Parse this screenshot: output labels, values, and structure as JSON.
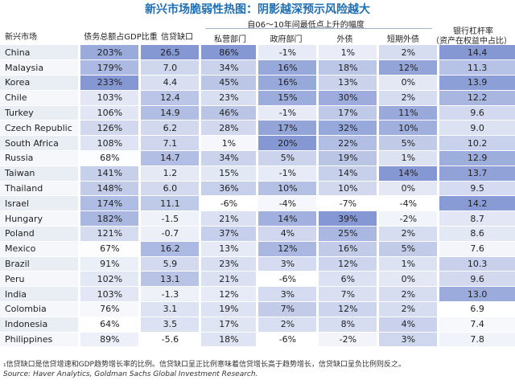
{
  "title": "新兴市场脆弱性热图：阴影越深预示风险越大",
  "headers": {
    "market": "新兴市场",
    "debt_gdp": "债务总额占GDP比重",
    "credit_gap": "信贷缺口",
    "group_label": "自06～10年间最低点上升的幅度",
    "private": "私营部门",
    "government": "政府部门",
    "external": "外债",
    "short_external": "短期外债",
    "bank_leverage_line1": "银行杠杆率",
    "bank_leverage_line2": "（资产在权益中占比）"
  },
  "rows": [
    {
      "name": "China",
      "debt": "203%",
      "gap": "26.5",
      "priv": "86%",
      "gov": "-1%",
      "ext": "1%",
      "st": "2%",
      "lev": "14.4"
    },
    {
      "name": "Malaysia",
      "debt": "179%",
      "gap": "7.0",
      "priv": "34%",
      "gov": "16%",
      "ext": "18%",
      "st": "12%",
      "lev": "11.3"
    },
    {
      "name": "Korea",
      "debt": "233%",
      "gap": "4.4",
      "priv": "45%",
      "gov": "16%",
      "ext": "13%",
      "st": "0%",
      "lev": "13.9"
    },
    {
      "name": "Chile",
      "debt": "103%",
      "gap": "12.4",
      "priv": "23%",
      "gov": "15%",
      "ext": "30%",
      "st": "2%",
      "lev": "12.2"
    },
    {
      "name": "Turkey",
      "debt": "106%",
      "gap": "14.9",
      "priv": "46%",
      "gov": "-1%",
      "ext": "17%",
      "st": "11%",
      "lev": "9.6"
    },
    {
      "name": "Czech Republic",
      "debt": "126%",
      "gap": "6.2",
      "priv": "28%",
      "gov": "17%",
      "ext": "32%",
      "st": "10%",
      "lev": "9.0"
    },
    {
      "name": "South Africa",
      "debt": "108%",
      "gap": "7.1",
      "priv": "1%",
      "gov": "20%",
      "ext": "22%",
      "st": "5%",
      "lev": "10.2"
    },
    {
      "name": "Russia",
      "debt": "68%",
      "gap": "14.7",
      "priv": "34%",
      "gov": "5%",
      "ext": "19%",
      "st": "1%",
      "lev": "12.9"
    },
    {
      "name": "Taiwan",
      "debt": "141%",
      "gap": "1.2",
      "priv": "15%",
      "gov": "-1%",
      "ext": "14%",
      "st": "14%",
      "lev": "13.7"
    },
    {
      "name": "Thailand",
      "debt": "148%",
      "gap": "6.0",
      "priv": "36%",
      "gov": "10%",
      "ext": "10%",
      "st": "0%",
      "lev": "9.5"
    },
    {
      "name": "Israel",
      "debt": "174%",
      "gap": "11.1",
      "priv": "-6%",
      "gov": "-4%",
      "ext": "-7%",
      "st": "-4%",
      "lev": "14.2"
    },
    {
      "name": "Hungary",
      "debt": "182%",
      "gap": "-1.5",
      "priv": "21%",
      "gov": "14%",
      "ext": "39%",
      "st": "-2%",
      "lev": "8.7"
    },
    {
      "name": "Poland",
      "debt": "121%",
      "gap": "-0.7",
      "priv": "37%",
      "gov": "4%",
      "ext": "25%",
      "st": "2%",
      "lev": "8.6"
    },
    {
      "name": "Mexico",
      "debt": "67%",
      "gap": "16.2",
      "priv": "13%",
      "gov": "12%",
      "ext": "16%",
      "st": "5%",
      "lev": "7.6"
    },
    {
      "name": "Brazil",
      "debt": "91%",
      "gap": "5.9",
      "priv": "23%",
      "gov": "3%",
      "ext": "12%",
      "st": "1%",
      "lev": "10.3"
    },
    {
      "name": "Peru",
      "debt": "102%",
      "gap": "13.1",
      "priv": "21%",
      "gov": "-6%",
      "ext": "6%",
      "st": "0%",
      "lev": "9.6"
    },
    {
      "name": "India",
      "debt": "103%",
      "gap": "-1.3",
      "priv": "12%",
      "gov": "3%",
      "ext": "7%",
      "st": "2%",
      "lev": "13.0"
    },
    {
      "name": "Colombia",
      "debt": "76%",
      "gap": "3.1",
      "priv": "19%",
      "gov": "7%",
      "ext": "12%",
      "st": "2%",
      "lev": "6.9"
    },
    {
      "name": "Indonesia",
      "debt": "64%",
      "gap": "3.5",
      "priv": "17%",
      "gov": "2%",
      "ext": "8%",
      "st": "4%",
      "lev": "7.4"
    },
    {
      "name": "Philippines",
      "debt": "89%",
      "gap": "-5.6",
      "priv": "18%",
      "gov": "-6%",
      "ext": "-2%",
      "st": "3%",
      "lev": "7.8"
    }
  ],
  "shading": {
    "base": "#ffffff",
    "dark": "#6f86cc",
    "gap_color": "#ffffff"
  },
  "footnote": "₁信贷缺口是信贷增速和GDP趋势增长率的比例。信贷缺口呈正比例意味着信贷增长高于趋势增长，信贷缺口呈负比例则反之。",
  "source": "Source: Haver Analytics, Goldman Sachs Global Investment Research."
}
